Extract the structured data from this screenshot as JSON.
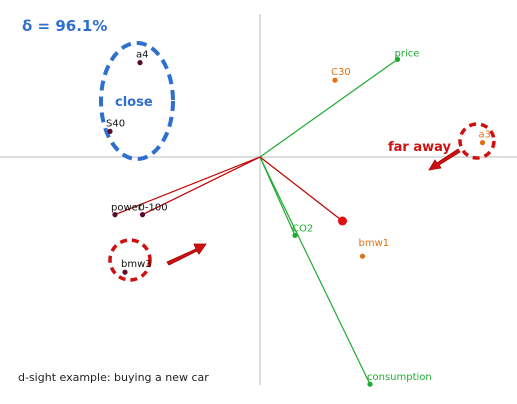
{
  "title": "δ = 96.1%",
  "caption": "d-sight example: buying a new car",
  "annotations": {
    "close": "close",
    "far_away": "far away"
  },
  "colors": {
    "alternative": "#5a0a2a",
    "criterion_green": "#22aa33",
    "criterion_red": "#c00000",
    "criterion_label_orange": "#e07010",
    "criterion_label_green": "#22aa33",
    "annotation_blue": "#2e6fd0",
    "annotation_red": "#d01010",
    "axis": "#bbbbbb"
  },
  "chart_data": {
    "type": "scatter",
    "title": "δ = 96.1%",
    "xlabel": "",
    "ylabel": "",
    "xlim": [
      -1,
      1
    ],
    "ylim": [
      -1,
      1
    ],
    "grid": false,
    "alternatives": [
      {
        "name": "a4",
        "x": -0.48,
        "y": 0.59
      },
      {
        "name": "S40",
        "x": -0.6,
        "y": 0.16
      },
      {
        "name": "power",
        "x": -0.58,
        "y": -0.36
      },
      {
        "name": "0-100",
        "x": -0.47,
        "y": -0.36
      },
      {
        "name": "bmw3",
        "x": -0.54,
        "y": -0.72
      },
      {
        "name": "a3",
        "x": 0.89,
        "y": 0.09
      },
      {
        "name": "C30",
        "x": 0.3,
        "y": 0.48
      },
      {
        "name": "bmw1",
        "x": 0.41,
        "y": -0.62
      }
    ],
    "criteria": [
      {
        "name": "price",
        "x": 0.55,
        "y": 0.61,
        "label_color": "green",
        "line_color": "green"
      },
      {
        "name": "consumption",
        "x": 0.44,
        "y": -1.42,
        "label_color": "green",
        "line_color": "green"
      },
      {
        "name": "CO2",
        "x": 0.14,
        "y": -0.49,
        "label_color": "green",
        "line_color": "green"
      },
      {
        "name": "power",
        "x": -0.58,
        "y": -0.36,
        "label_color": "none",
        "line_color": "red"
      },
      {
        "name": "0-100",
        "x": -0.47,
        "y": -0.36,
        "label_color": "none",
        "line_color": "red"
      }
    ],
    "decision_stick": {
      "x": 0.33,
      "y": -0.4
    }
  }
}
